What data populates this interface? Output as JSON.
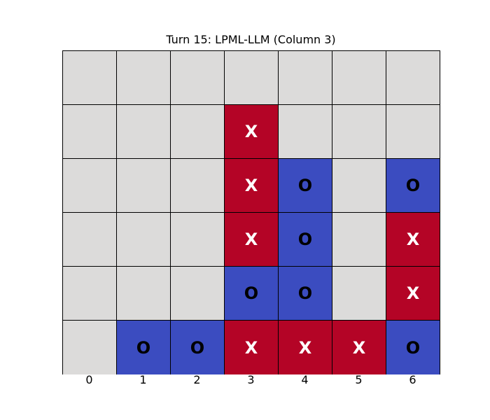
{
  "title": "Turn 15: LPML-LLM (Column 3)",
  "colors": {
    "empty": "#dcdbda",
    "x": "#b40426",
    "o": "#3b4cc0",
    "grid_line": "#000000"
  },
  "columns": [
    "0",
    "1",
    "2",
    "3",
    "4",
    "5",
    "6"
  ],
  "board": [
    [
      "",
      "",
      "",
      "",
      "",
      "",
      ""
    ],
    [
      "",
      "",
      "",
      "X",
      "",
      "",
      ""
    ],
    [
      "",
      "",
      "",
      "X",
      "O",
      "",
      "O"
    ],
    [
      "",
      "",
      "",
      "X",
      "O",
      "",
      "X"
    ],
    [
      "",
      "",
      "",
      "O",
      "O",
      "",
      "X"
    ],
    [
      "",
      "O",
      "O",
      "X",
      "X",
      "X",
      "O"
    ]
  ]
}
